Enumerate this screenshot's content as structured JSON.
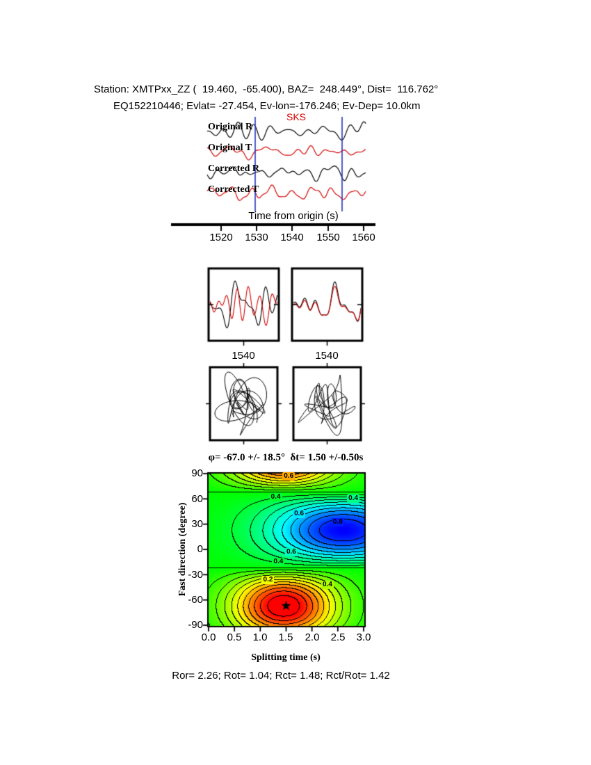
{
  "header": {
    "line1": "Station: XMTPxx_ZZ (  19.460,  -65.400), BAZ=  248.449°, Dist=  116.762°",
    "line2": "EQ152210446; Evlat= -27.454, Ev-lon=-176.246; Ev-Dep= 10.0km"
  },
  "waveforms": {
    "phase_label": "SKS",
    "traces": [
      "Original R",
      "Original T",
      "Corrected R",
      "Corrected T"
    ],
    "axis_title": "Time from origin (s)",
    "xticks": [
      "1520",
      "1530",
      "1540",
      "1550",
      "1560"
    ]
  },
  "windows": {
    "left_label": "1540",
    "right_label": "1540"
  },
  "contour": {
    "title": "φ= -67.0 +/- 18.5°  δt= 1.50 +/-0.50s",
    "ylabel": "Fast direction (degree)",
    "xlabel": "Splitting time (s)",
    "yticks": [
      "90",
      "60",
      "30",
      "0",
      "-30",
      "-60",
      "-90"
    ],
    "xticks": [
      "0.0",
      "0.5",
      "1.0",
      "1.5",
      "2.0",
      "2.5",
      "3.0"
    ],
    "labels": [
      {
        "text": "0.6",
        "dt": 1.55,
        "phi": 87
      },
      {
        "text": "0.4",
        "dt": 1.3,
        "phi": 62
      },
      {
        "text": "0.4",
        "dt": 2.8,
        "phi": 60
      },
      {
        "text": "0.6",
        "dt": 1.75,
        "phi": 42
      },
      {
        "text": "0.8",
        "dt": 2.5,
        "phi": 32
      },
      {
        "text": "0.6",
        "dt": 1.6,
        "phi": -3
      },
      {
        "text": "0.4",
        "dt": 1.35,
        "phi": -15
      },
      {
        "text": "0.2",
        "dt": 1.15,
        "phi": -36
      },
      {
        "text": "0.4",
        "dt": 2.3,
        "phi": -42
      }
    ]
  },
  "footer": "Ror= 2.26; Rot= 1.04; Rct= 1.48; Rct/Rot= 1.42",
  "chart_data": [
    {
      "type": "line",
      "title": "SKS radial/transverse waveforms",
      "series": [
        {
          "name": "Original R",
          "color": "#000000"
        },
        {
          "name": "Original T",
          "color": "#d40000"
        },
        {
          "name": "Corrected R",
          "color": "#000000"
        },
        {
          "name": "Corrected T",
          "color": "#d40000"
        }
      ],
      "xlabel": "Time from origin (s)",
      "xlim": [
        1516,
        1561
      ],
      "xticks": [
        1520,
        1530,
        1540,
        1550,
        1560
      ],
      "window_markers_s": [
        1529.6,
        1554.0
      ],
      "phase": "SKS"
    },
    {
      "type": "line",
      "title": "Windowed waveform pairs (left: original, right: corrected)",
      "panels": [
        "original",
        "corrected"
      ],
      "xticks": [
        1540
      ]
    },
    {
      "type": "scatter",
      "title": "Particle motion (left: original, right: corrected)",
      "panels": [
        "original",
        "corrected"
      ]
    },
    {
      "type": "heatmap",
      "title": "φ= -67.0 +/- 18.5°  δt= 1.50 +/-0.50s",
      "xlabel": "Splitting time (s)",
      "ylabel": "Fast direction (degree)",
      "xlim": [
        0,
        3
      ],
      "ylim": [
        -90,
        90
      ],
      "xticks": [
        0.0,
        0.5,
        1.0,
        1.5,
        2.0,
        2.5,
        3.0
      ],
      "yticks": [
        90,
        60,
        30,
        0,
        -30,
        -60,
        -90
      ],
      "best_fit": {
        "splitting_time_s": 1.5,
        "fast_direction_deg": -67
      },
      "phi_deg": -67.0,
      "phi_err_deg": 18.5,
      "dt_s": 1.5,
      "dt_err_s": 0.5,
      "labeled_contours": [
        0.2,
        0.4,
        0.6,
        0.8
      ],
      "colormap": "rainbow",
      "grid": false,
      "ratios": {
        "Ror": 2.26,
        "Rot": 1.04,
        "Rct": 1.48,
        "Rct_over_Rot": 1.42
      }
    }
  ]
}
